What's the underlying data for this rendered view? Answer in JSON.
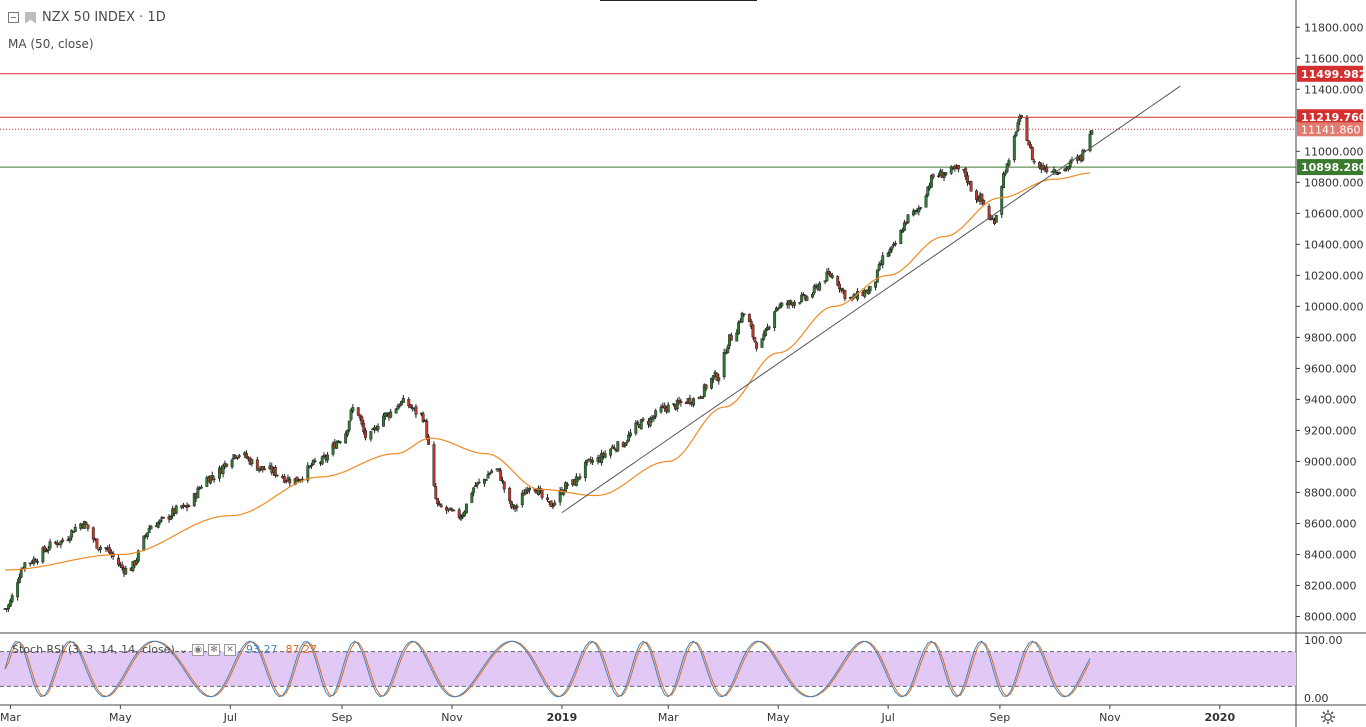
{
  "header": {
    "title": "NZX 50 INDEX · 1D",
    "ma_label": "MA (50, close)"
  },
  "colors": {
    "up": "#2e7d32",
    "down": "#c0392b",
    "ma": "#f08a24",
    "resistance": "#d32f2f",
    "support": "#3c7a2f",
    "stoch_k": "#3d85c6",
    "stoch_d": "#e06c1e",
    "stoch_band": "#e2c9f5"
  },
  "stoch": {
    "label": "Stoch RSI (3, 3, 14, 14, close)",
    "k_value": "93.27",
    "d_value": "87.27",
    "axis_labels": [
      "100.00",
      "0.00"
    ]
  },
  "chart_data": {
    "type": "candlestick",
    "title": "NZX 50 INDEX · 1D",
    "xlabel": "",
    "ylabel": "",
    "ylim": [
      7900,
      11950
    ],
    "y_ticks": [
      8000,
      8200,
      8400,
      8600,
      8800,
      9000,
      9200,
      9400,
      9600,
      9800,
      10000,
      10200,
      10400,
      10600,
      10800,
      11000,
      11200,
      11400,
      11600,
      11800
    ],
    "x_ticks": [
      "Mar",
      "May",
      "Jul",
      "Sep",
      "Nov",
      "2019",
      "Mar",
      "May",
      "Jul",
      "Sep",
      "Nov",
      "2020"
    ],
    "price_key_points": [
      [
        "2018-02-26",
        8050
      ],
      [
        "2018-03-10",
        8350
      ],
      [
        "2018-03-28",
        8480
      ],
      [
        "2018-04-10",
        8600
      ],
      [
        "2018-04-20",
        8450
      ],
      [
        "2018-05-05",
        8300
      ],
      [
        "2018-05-20",
        8600
      ],
      [
        "2018-06-05",
        8700
      ],
      [
        "2018-06-20",
        8900
      ],
      [
        "2018-07-05",
        9050
      ],
      [
        "2018-07-20",
        8950
      ],
      [
        "2018-08-05",
        8880
      ],
      [
        "2018-08-20",
        9000
      ],
      [
        "2018-09-01",
        9150
      ],
      [
        "2018-09-08",
        9350
      ],
      [
        "2018-09-15",
        9150
      ],
      [
        "2018-09-25",
        9300
      ],
      [
        "2018-10-05",
        9380
      ],
      [
        "2018-10-15",
        9300
      ],
      [
        "2018-10-25",
        8700
      ],
      [
        "2018-11-05",
        8650
      ],
      [
        "2018-11-15",
        8850
      ],
      [
        "2018-11-25",
        8950
      ],
      [
        "2018-12-05",
        8700
      ],
      [
        "2018-12-15",
        8850
      ],
      [
        "2018-12-25",
        8720
      ],
      [
        "2019-01-05",
        8850
      ],
      [
        "2019-01-18",
        9000
      ],
      [
        "2019-02-01",
        9100
      ],
      [
        "2019-02-15",
        9250
      ],
      [
        "2019-03-01",
        9350
      ],
      [
        "2019-03-15",
        9400
      ],
      [
        "2019-03-28",
        9550
      ],
      [
        "2019-04-05",
        9800
      ],
      [
        "2019-04-12",
        9950
      ],
      [
        "2019-04-20",
        9750
      ],
      [
        "2019-05-01",
        10000
      ],
      [
        "2019-05-15",
        10050
      ],
      [
        "2019-05-30",
        10200
      ],
      [
        "2019-06-10",
        10050
      ],
      [
        "2019-06-20",
        10100
      ],
      [
        "2019-07-01",
        10350
      ],
      [
        "2019-07-15",
        10600
      ],
      [
        "2019-07-28",
        10850
      ],
      [
        "2019-08-10",
        10880
      ],
      [
        "2019-08-20",
        10700
      ],
      [
        "2019-08-28",
        10550
      ],
      [
        "2019-09-05",
        10900
      ],
      [
        "2019-09-12",
        11200
      ],
      [
        "2019-09-22",
        10900
      ],
      [
        "2019-10-05",
        10880
      ],
      [
        "2019-10-15",
        10950
      ],
      [
        "2019-10-22",
        11150
      ]
    ],
    "ma50_key_points": [
      [
        "2018-02-26",
        8300
      ],
      [
        "2018-05-01",
        8400
      ],
      [
        "2018-07-01",
        8650
      ],
      [
        "2018-08-20",
        8900
      ],
      [
        "2018-10-01",
        9050
      ],
      [
        "2018-10-20",
        9150
      ],
      [
        "2018-11-20",
        9050
      ],
      [
        "2018-12-20",
        8820
      ],
      [
        "2019-01-20",
        8780
      ],
      [
        "2019-03-01",
        9000
      ],
      [
        "2019-04-01",
        9350
      ],
      [
        "2019-05-01",
        9700
      ],
      [
        "2019-06-01",
        10000
      ],
      [
        "2019-07-01",
        10200
      ],
      [
        "2019-08-01",
        10450
      ],
      [
        "2019-09-01",
        10700
      ],
      [
        "2019-10-01",
        10820
      ],
      [
        "2019-10-22",
        10860
      ]
    ],
    "trendline": {
      "from": [
        "2019-01-01",
        8670
      ],
      "to": [
        "2019-12-10",
        11420
      ]
    },
    "horizontal_lines": [
      {
        "value": "11499.982",
        "color": "#d32f2f"
      },
      {
        "value": "11219.760",
        "color": "#d32f2f"
      },
      {
        "value": "10898.280",
        "color": "#3c7a2f"
      }
    ],
    "last_price": "11141.860",
    "grid": false
  }
}
